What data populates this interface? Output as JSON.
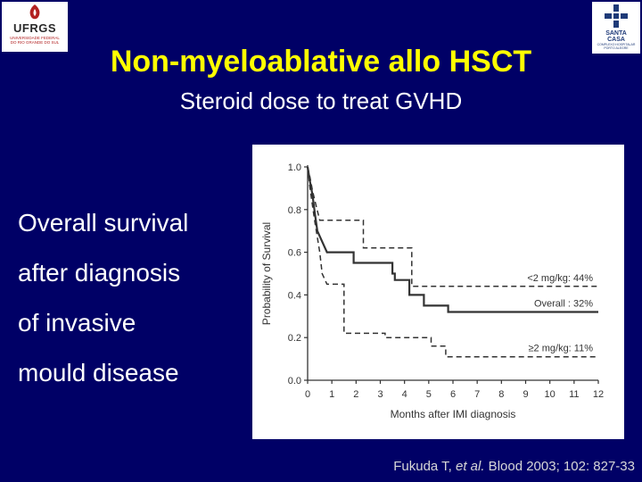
{
  "logos": {
    "left": {
      "name": "UFRGS",
      "subtitle_lines": [
        "UNIVERSIDADE FEDERAL",
        "DO RIO GRANDE DO SUL"
      ],
      "color": "#b22222"
    },
    "right": {
      "name_lines": [
        "SANTA",
        "CASA"
      ],
      "subtitle_lines": [
        "COMPLEXO HOSPITALAR",
        "PORTO ALEGRE"
      ],
      "color": "#1e3a78"
    }
  },
  "slide": {
    "title": "Non-myeloablative allo HSCT",
    "subtitle": "Steroid dose to treat GVHD",
    "side_lines": [
      "Overall survival",
      "after diagnosis",
      "of invasive",
      "mould disease"
    ],
    "citation_prefix": "Fukuda T, ",
    "citation_italic": "et al.",
    "citation_suffix": " Blood 2003; 102: 827-33",
    "colors": {
      "background": "#000066",
      "title": "#ffff00",
      "text": "#ffffff",
      "citation": "#d7d7d7"
    }
  },
  "chart_data": {
    "type": "line",
    "subtype": "kaplan-meier step",
    "xlabel": "Months after IMI diagnosis",
    "ylabel": "Probability of Survival",
    "xlim": [
      0,
      12
    ],
    "ylim": [
      0,
      1
    ],
    "x_ticks": [
      0,
      1,
      2,
      3,
      4,
      5,
      6,
      7,
      8,
      9,
      10,
      11,
      12
    ],
    "y_ticks": [
      "0.0",
      "0.2",
      "0.4",
      "0.6",
      "0.8",
      "1.0"
    ],
    "grid": false,
    "series": [
      {
        "name": "<2 mg/kg: 44%",
        "style": "dashed",
        "points": [
          [
            0,
            1.0
          ],
          [
            0.1,
            0.95
          ],
          [
            0.2,
            0.89
          ],
          [
            0.3,
            0.84
          ],
          [
            0.5,
            0.75
          ],
          [
            2.3,
            0.75
          ],
          [
            2.3,
            0.62
          ],
          [
            4.3,
            0.62
          ],
          [
            4.3,
            0.44
          ],
          [
            12,
            0.44
          ]
        ]
      },
      {
        "name": "Overall : 32%",
        "style": "solid",
        "points": [
          [
            0,
            1.0
          ],
          [
            0.1,
            0.93
          ],
          [
            0.2,
            0.87
          ],
          [
            0.3,
            0.78
          ],
          [
            0.4,
            0.7
          ],
          [
            0.6,
            0.65
          ],
          [
            0.8,
            0.6
          ],
          [
            1.9,
            0.6
          ],
          [
            1.9,
            0.55
          ],
          [
            3.5,
            0.55
          ],
          [
            3.5,
            0.5
          ],
          [
            3.6,
            0.5
          ],
          [
            3.6,
            0.47
          ],
          [
            4.2,
            0.47
          ],
          [
            4.2,
            0.4
          ],
          [
            4.8,
            0.4
          ],
          [
            4.8,
            0.35
          ],
          [
            5.8,
            0.35
          ],
          [
            5.8,
            0.32
          ],
          [
            12,
            0.32
          ]
        ]
      },
      {
        "name": "≥2 mg/kg: 11%",
        "style": "dashed",
        "points": [
          [
            0,
            1.0
          ],
          [
            0.1,
            0.9
          ],
          [
            0.2,
            0.82
          ],
          [
            0.3,
            0.74
          ],
          [
            0.5,
            0.6
          ],
          [
            0.6,
            0.5
          ],
          [
            0.8,
            0.45
          ],
          [
            1.5,
            0.45
          ],
          [
            1.5,
            0.22
          ],
          [
            3.2,
            0.22
          ],
          [
            3.2,
            0.2
          ],
          [
            5.1,
            0.2
          ],
          [
            5.1,
            0.16
          ],
          [
            5.7,
            0.16
          ],
          [
            5.7,
            0.11
          ],
          [
            12,
            0.11
          ]
        ]
      }
    ]
  }
}
